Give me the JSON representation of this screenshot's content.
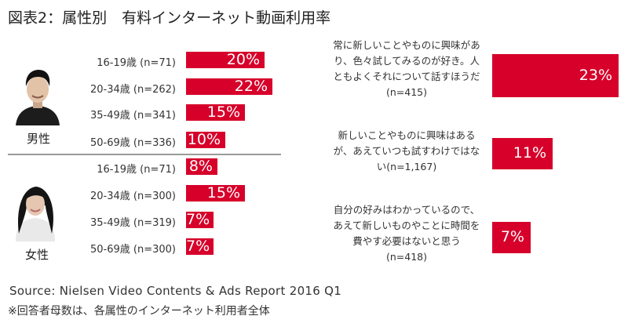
{
  "title": "図表2：属性別　有料インターネット動画利用率",
  "chart_data": [
    {
      "type": "bar",
      "orientation": "horizontal",
      "title": "",
      "groups": [
        {
          "name": "男性",
          "categories": [
            "16-19歳 (n=71)",
            "20-34歳 (n=262)",
            "35-49歳 (n=341)",
            "50-69歳 (n=336)"
          ],
          "values": [
            20,
            22,
            15,
            10
          ]
        },
        {
          "name": "女性",
          "categories": [
            "16-19歳 (n=71)",
            "20-34歳 (n=300)",
            "35-49歳 (n=319)",
            "50-69歳 (n=300)"
          ],
          "values": [
            8,
            15,
            7,
            7
          ]
        }
      ],
      "unit": "%",
      "color": "#d6002a"
    },
    {
      "type": "bar",
      "orientation": "horizontal",
      "title": "",
      "categories": [
        [
          "常に新しいことやものに興味があ",
          "り、色々試してみるのが好き。人",
          "ともよくそれについて話すほうだ",
          "(n=415)"
        ],
        [
          "新しいことやものに興味はある",
          "が、あえていつも試すわけではな",
          "い(n=1,167)"
        ],
        [
          "自分の好みはわかっているので、",
          "あえて新しいものやことに時間を",
          "費やす必要はないと思う",
          "(n=418)"
        ]
      ],
      "values": [
        23,
        11,
        7
      ],
      "unit": "%",
      "color": "#d6002a"
    }
  ],
  "source": "Source: Nielsen Video Contents & Ads Report 2016 Q1",
  "note": "※回答者母数は、各属性のインターネット利用者全体",
  "icons": {
    "male": "man-photo-icon",
    "female": "woman-photo-icon"
  }
}
